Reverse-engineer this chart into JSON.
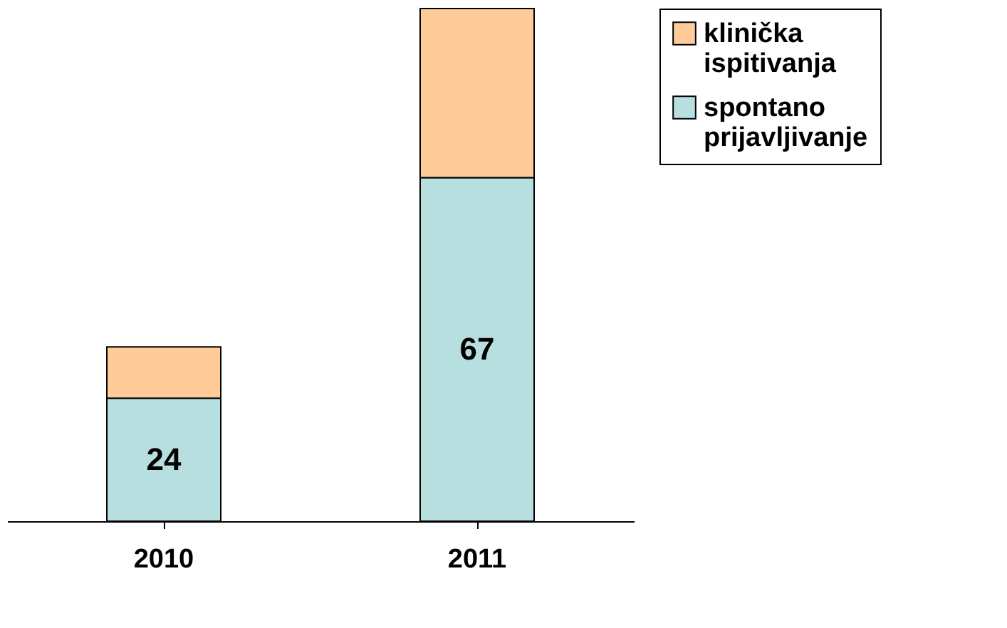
{
  "chart_data": {
    "type": "bar",
    "stacked": true,
    "categories": [
      "2010",
      "2011"
    ],
    "series": [
      {
        "name": "spontano prijavljivanje",
        "color": "#b8dfe0",
        "values": [
          24,
          67
        ],
        "value_labels": [
          "24",
          "67"
        ]
      },
      {
        "name": "klinička ispitivanja",
        "color": "#ffcc99",
        "values": [
          10,
          33
        ]
      }
    ],
    "legend": "right",
    "tick_labels": "x"
  }
}
